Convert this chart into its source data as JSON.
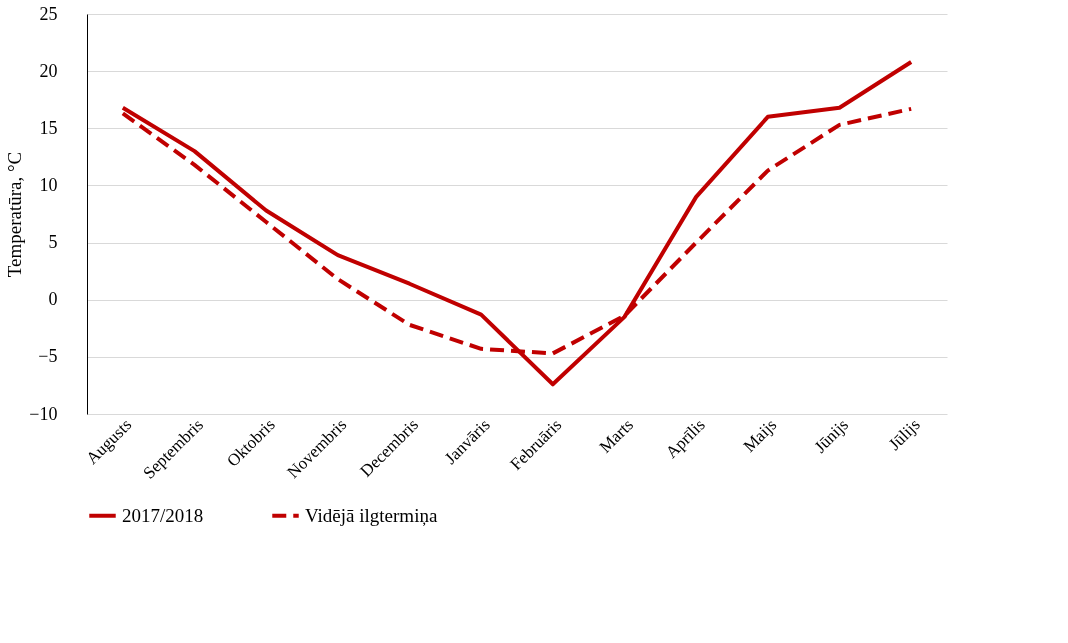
{
  "chart_data": {
    "type": "line",
    "ylabel": "Temperatūra, °C",
    "categories": [
      "Augusts",
      "Septembris",
      "Oktobris",
      "Novembris",
      "Decembris",
      "Janvāris",
      "Februāris",
      "Marts",
      "Aprīlis",
      "Maijs",
      "Jūnijs",
      "Jūlijs"
    ],
    "series": [
      {
        "name": "2017/2018",
        "color": "#c00000",
        "line_style": "solid",
        "values": [
          16.8,
          13.0,
          7.8,
          3.9,
          1.4,
          -1.3,
          -7.4,
          -1.5,
          9.0,
          16.0,
          16.8,
          20.8
        ]
      },
      {
        "name": "Vidējā ilgtermiņa",
        "color": "#c00000",
        "line_style": "dashed",
        "values": [
          16.3,
          11.8,
          6.8,
          1.8,
          -2.2,
          -4.3,
          -4.7,
          -1.4,
          5.0,
          11.3,
          15.3,
          16.7
        ]
      }
    ],
    "ylim": [
      -10,
      25
    ],
    "yticks": [
      -10,
      -5,
      0,
      5,
      10,
      15,
      20,
      25
    ],
    "grid": "y",
    "legend": "bottom",
    "marker": "none"
  }
}
